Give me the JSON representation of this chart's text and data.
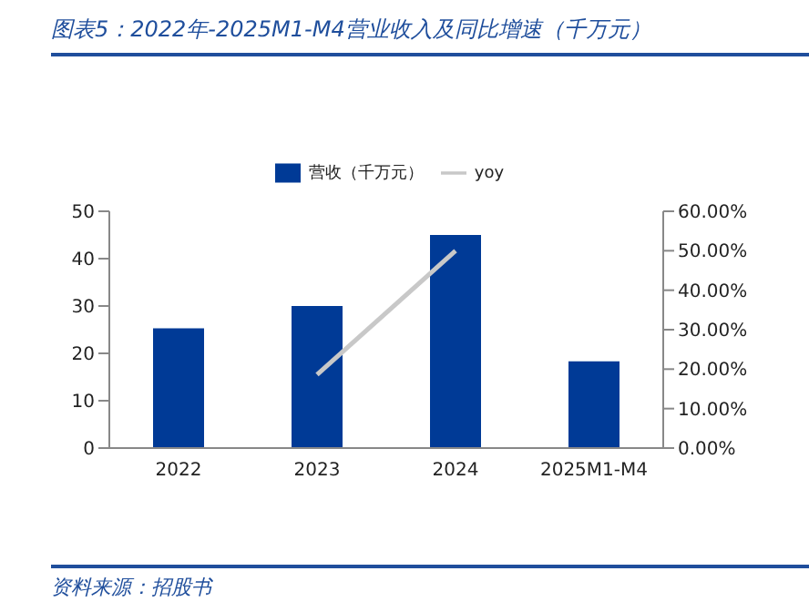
{
  "chart_data": {
    "type": "bar",
    "title": "图表5：2022年-2025M1-M4营业收入及同比增速（千万元）",
    "categories": [
      "2022",
      "2023",
      "2024",
      "2025M1-M4"
    ],
    "series": [
      {
        "name": "营收（千万元）",
        "color": "#003a96",
        "values": [
          25.3,
          30.0,
          45.0,
          18.3
        ]
      },
      {
        "name": "yoy",
        "type": "line",
        "axis": "y2",
        "color": "#c8c8c8",
        "values": [
          null,
          18.6,
          50.0,
          null
        ]
      }
    ],
    "ylim": [
      0,
      50
    ],
    "yticks": [
      0,
      10,
      20,
      30,
      40,
      50
    ],
    "y2lim": [
      0,
      60
    ],
    "y2ticks": [
      {
        "value": 0,
        "label": "0.00%"
      },
      {
        "value": 10,
        "label": "10.00%"
      },
      {
        "value": 20,
        "label": "20.00%"
      },
      {
        "value": 30,
        "label": "30.00%"
      },
      {
        "value": 40,
        "label": "40.00%"
      },
      {
        "value": 50,
        "label": "50.00%"
      },
      {
        "value": 60,
        "label": "60.00%"
      }
    ],
    "legend": "top",
    "grid": false,
    "marker": "none",
    "annotations": [
      "资料来源：招股书"
    ]
  }
}
